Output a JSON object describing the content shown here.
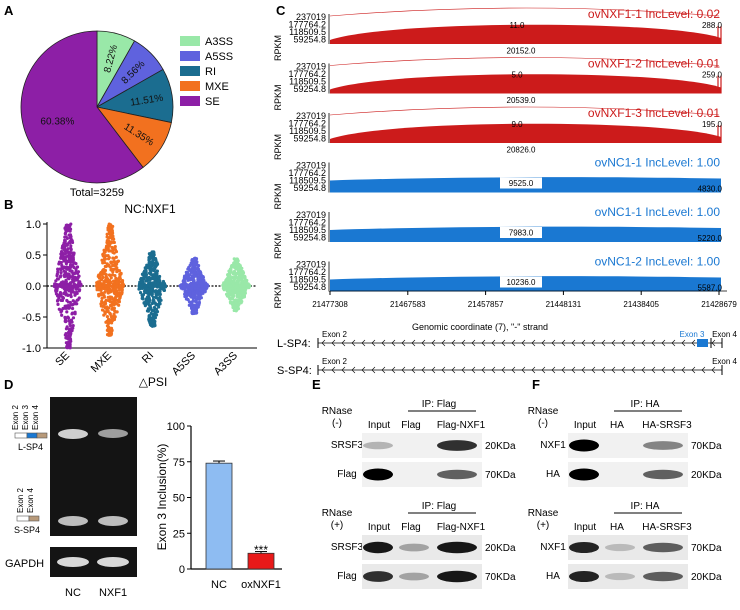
{
  "panel_labels": {
    "a": "A",
    "b": "B",
    "c": "C",
    "d": "D",
    "e": "E",
    "f": "F"
  },
  "panel_a": {
    "total": "Total=3259",
    "slices": [
      {
        "label": "A3SS",
        "pct_text": "8.22%",
        "value": 8.22,
        "color": "#99e8a8"
      },
      {
        "label": "A5SS",
        "pct_text": "8.56%",
        "value": 8.56,
        "color": "#5f62de"
      },
      {
        "label": "RI",
        "pct_text": "11.51%",
        "value": 11.51,
        "color": "#1b6d90"
      },
      {
        "label": "MXE",
        "pct_text": "11.35%",
        "value": 11.35,
        "color": "#f2711f"
      },
      {
        "label": "SE",
        "pct_text": "60.38%",
        "value": 60.38,
        "color": "#8d1fa6"
      }
    ]
  },
  "panel_b": {
    "title": "NC:NXF1",
    "xlabel": "△PSI",
    "yticks": [
      "1.0",
      "0.5",
      "0.0",
      "-0.5",
      "-1.0"
    ],
    "groups": [
      {
        "label": "SE",
        "color": "#8d1fa6",
        "top": 1.0,
        "bottom": -1.0
      },
      {
        "label": "MXE",
        "color": "#f2711f",
        "top": 1.0,
        "bottom": -0.8
      },
      {
        "label": "RI",
        "color": "#1b6d90",
        "top": 0.55,
        "bottom": -0.65
      },
      {
        "label": "A5SS",
        "color": "#5f62de",
        "top": 0.45,
        "bottom": -0.45
      },
      {
        "label": "A3SS",
        "color": "#99e8a8",
        "top": 0.45,
        "bottom": -0.4
      }
    ]
  },
  "panel_c": {
    "ylabel": "RPKM",
    "yticks": [
      "237019",
      "177764.2",
      "118509.5",
      "59254.8"
    ],
    "tracks": [
      {
        "label": "ovNXF1-1 IncLevel: 0.02",
        "color": "#cc1b1b",
        "arc_top": "11.0",
        "skip_end": "288.0",
        "inc": "20152.0"
      },
      {
        "label": "ovNXF1-2 IncLevel: 0.01",
        "color": "#cc1b1b",
        "arc_top": "5.0",
        "skip_end": "259.0",
        "inc": "20539.0"
      },
      {
        "label": "ovNXF1-3 IncLevel: 0.01",
        "color": "#cc1b1b",
        "arc_top": "9.0",
        "skip_end": "195.0",
        "inc": "20826.0"
      },
      {
        "label": "ovNC1-1 IncLevel: 1.00",
        "color": "#1a78d2",
        "arc_top": "",
        "skip_end": "4830.0",
        "inc": "9525.0"
      },
      {
        "label": "ovNC1-1 IncLevel: 1.00",
        "color": "#1a78d2",
        "arc_top": "",
        "skip_end": "5220.0",
        "inc": "7983.0"
      },
      {
        "label": "ovNC1-2 IncLevel: 1.00",
        "color": "#1a78d2",
        "arc_top": "",
        "skip_end": "5587.0",
        "inc": "10236.0"
      }
    ],
    "xticks": [
      "21477308",
      "21467583",
      "21457857",
      "21448131",
      "21438405",
      "21428679"
    ],
    "xlabel": "Genomic coordinate (7), \"-\" strand",
    "lsp4": {
      "name": "L-SP4:",
      "exon2": "Exon 2",
      "exon3": "Exon 3",
      "exon4": "Exon 4"
    },
    "ssp4": {
      "name": "S-SP4:",
      "exon2": "Exon 2",
      "exon4": "Exon 4"
    }
  },
  "panel_d": {
    "lanes": [
      "NC",
      "NXF1"
    ],
    "gel_labels": {
      "top_exons": [
        "Exon 2",
        "Exon 3",
        "Exon 4"
      ],
      "top_iso": "L-SP4",
      "bottom_exons": [
        "Exon 2",
        "Exon 4"
      ],
      "bottom_iso": "S-SP4",
      "loading": "GAPDH"
    },
    "chart_data": {
      "type": "bar",
      "categories": [
        "NC",
        "oxNXF1"
      ],
      "values": [
        74,
        11
      ],
      "errors": [
        1.5,
        1.2
      ],
      "colors": [
        "#8ebcf2",
        "#e81919"
      ],
      "ylabel": "Exon 3 Inclusion(%)",
      "yticks": [
        "0",
        "25",
        "50",
        "75",
        "100"
      ],
      "ylim": [
        0,
        100
      ],
      "annotation": "***"
    }
  },
  "panel_e": {
    "upper": {
      "rnase": "RNase",
      "state": "(-)",
      "ip": "IP: Flag",
      "lanes": [
        "Input",
        "Flag",
        "Flag-NXF1"
      ],
      "rows": [
        {
          "name": "SRSF3",
          "kda": "20KDa"
        },
        {
          "name": "Flag",
          "kda": "70KDa"
        }
      ]
    },
    "lower": {
      "rnase": "RNase",
      "state": "(+)",
      "ip": "IP: Flag",
      "lanes": [
        "Input",
        "Flag",
        "Flag-NXF1"
      ],
      "rows": [
        {
          "name": "SRSF3",
          "kda": "20KDa"
        },
        {
          "name": "Flag",
          "kda": "70KDa"
        }
      ]
    }
  },
  "panel_f": {
    "upper": {
      "rnase": "RNase",
      "state": "(-)",
      "ip": "IP: HA",
      "lanes": [
        "Input",
        "HA",
        "HA-SRSF3"
      ],
      "rows": [
        {
          "name": "NXF1",
          "kda": "70KDa"
        },
        {
          "name": "HA",
          "kda": "20KDa"
        }
      ]
    },
    "lower": {
      "rnase": "RNase",
      "state": "(+)",
      "ip": "IP: HA",
      "lanes": [
        "Input",
        "HA",
        "HA-SRSF3"
      ],
      "rows": [
        {
          "name": "NXF1",
          "kda": "70KDa"
        },
        {
          "name": "HA",
          "kda": "20KDa"
        }
      ]
    }
  }
}
